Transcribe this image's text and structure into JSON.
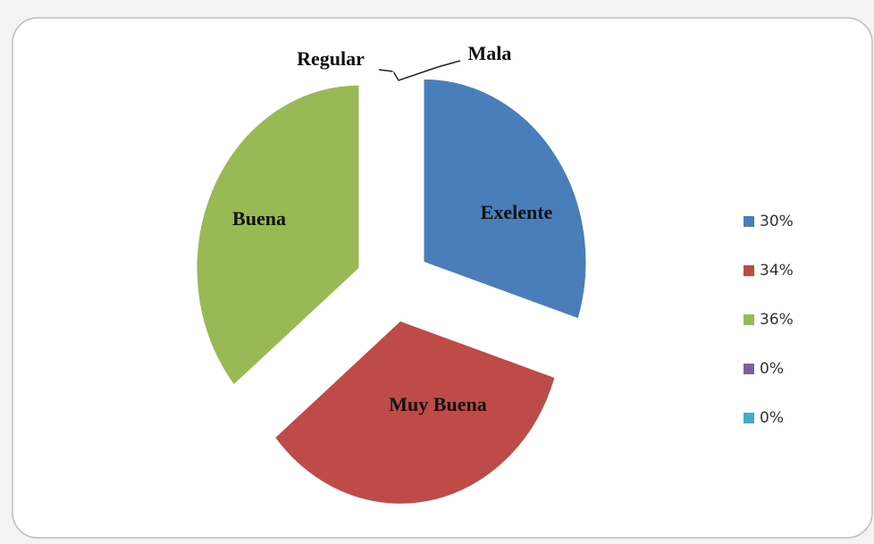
{
  "chart_data": {
    "type": "pie",
    "categories": [
      "Exelente",
      "Muy Buena",
      "Buena",
      "Regular",
      "Mala"
    ],
    "values": [
      30,
      34,
      36,
      0,
      0
    ],
    "value_labels": [
      "30%",
      "34%",
      "36%",
      "0%",
      "0%"
    ],
    "colors": [
      "#4a7ebb",
      "#be4b48",
      "#98b954",
      "#7d60a0",
      "#46aac5"
    ],
    "legend": "right"
  }
}
